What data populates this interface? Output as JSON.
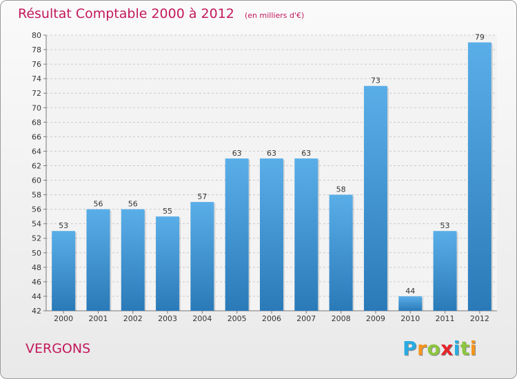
{
  "header": {
    "title": "Résultat Comptable 2000 à 2012",
    "subtitle": "(en milliers d'€)"
  },
  "footer": {
    "commune": "VERGONS",
    "logo_letters": [
      "P",
      "r",
      "o",
      "x",
      "i",
      "t",
      "i"
    ],
    "logo_colors": [
      "#29abe2",
      "#f7941d",
      "#8dc63f",
      "#e4252c",
      "#29abe2",
      "#8dc63f",
      "#f7941d"
    ]
  },
  "chart_data": {
    "type": "bar",
    "title": "Résultat Comptable 2000 à 2012",
    "subtitle": "(en milliers d'€)",
    "categories": [
      "2000",
      "2001",
      "2002",
      "2003",
      "2004",
      "2005",
      "2006",
      "2007",
      "2008",
      "2009",
      "2010",
      "2011",
      "2012"
    ],
    "values": [
      53,
      56,
      56,
      55,
      57,
      63,
      63,
      63,
      58,
      73,
      44,
      53,
      79
    ],
    "ylim": [
      42,
      80
    ],
    "yticks": [
      42,
      44,
      46,
      48,
      50,
      52,
      54,
      56,
      58,
      60,
      62,
      64,
      66,
      68,
      70,
      72,
      74,
      76,
      78,
      80
    ],
    "grid": true,
    "bar_color_top": "#5aaee8",
    "bar_color_bottom": "#2a7ab8",
    "xlabel": "",
    "ylabel": ""
  }
}
